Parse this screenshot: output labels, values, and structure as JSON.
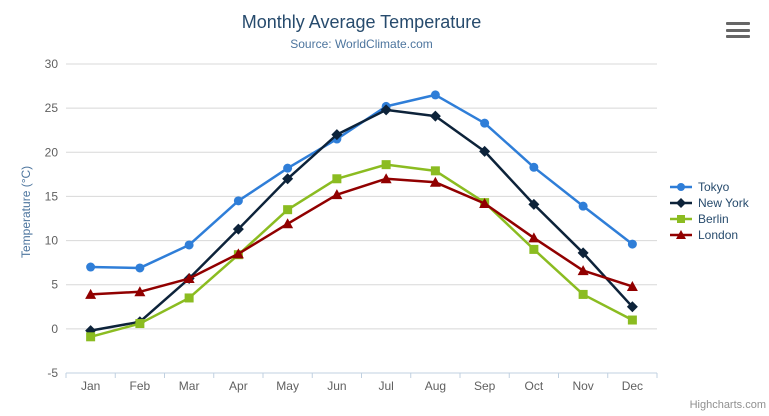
{
  "header": {
    "title": "Monthly Average Temperature",
    "subtitle": "Source: WorldClimate.com"
  },
  "credits": "Highcharts.com",
  "icons": {
    "context_menu": "hamburger"
  },
  "axis_colors": {
    "grid_line": "#d8d8d8",
    "axis_line": "#c0d0e0",
    "label": "#606060"
  },
  "chart_data": {
    "type": "line",
    "title": "Monthly Average Temperature",
    "subtitle": "Source: WorldClimate.com",
    "categories": [
      "Jan",
      "Feb",
      "Mar",
      "Apr",
      "May",
      "Jun",
      "Jul",
      "Aug",
      "Sep",
      "Oct",
      "Nov",
      "Dec"
    ],
    "series": [
      {
        "name": "Tokyo",
        "color": "#2f7ed8",
        "marker": "circle",
        "values": [
          7.0,
          6.9,
          9.5,
          14.5,
          18.2,
          21.5,
          25.2,
          26.5,
          23.3,
          18.3,
          13.9,
          9.6
        ]
      },
      {
        "name": "New York",
        "color": "#0d233a",
        "marker": "diamond",
        "values": [
          -0.2,
          0.8,
          5.7,
          11.3,
          17.0,
          22.0,
          24.8,
          24.1,
          20.1,
          14.1,
          8.6,
          2.5
        ]
      },
      {
        "name": "Berlin",
        "color": "#8bbc21",
        "marker": "square",
        "values": [
          -0.9,
          0.6,
          3.5,
          8.4,
          13.5,
          17.0,
          18.6,
          17.9,
          14.3,
          9.0,
          3.9,
          1.0
        ]
      },
      {
        "name": "London",
        "color": "#910000",
        "marker": "triangle",
        "values": [
          3.9,
          4.2,
          5.7,
          8.5,
          11.9,
          15.2,
          17.0,
          16.6,
          14.2,
          10.3,
          6.6,
          4.8
        ]
      }
    ],
    "xlabel": "",
    "ylabel": "Temperature (°C)",
    "ylim": [
      -5,
      30
    ],
    "yticks": [
      -5,
      0,
      5,
      10,
      15,
      20,
      25,
      30
    ],
    "grid": true,
    "legend_position": "right"
  }
}
